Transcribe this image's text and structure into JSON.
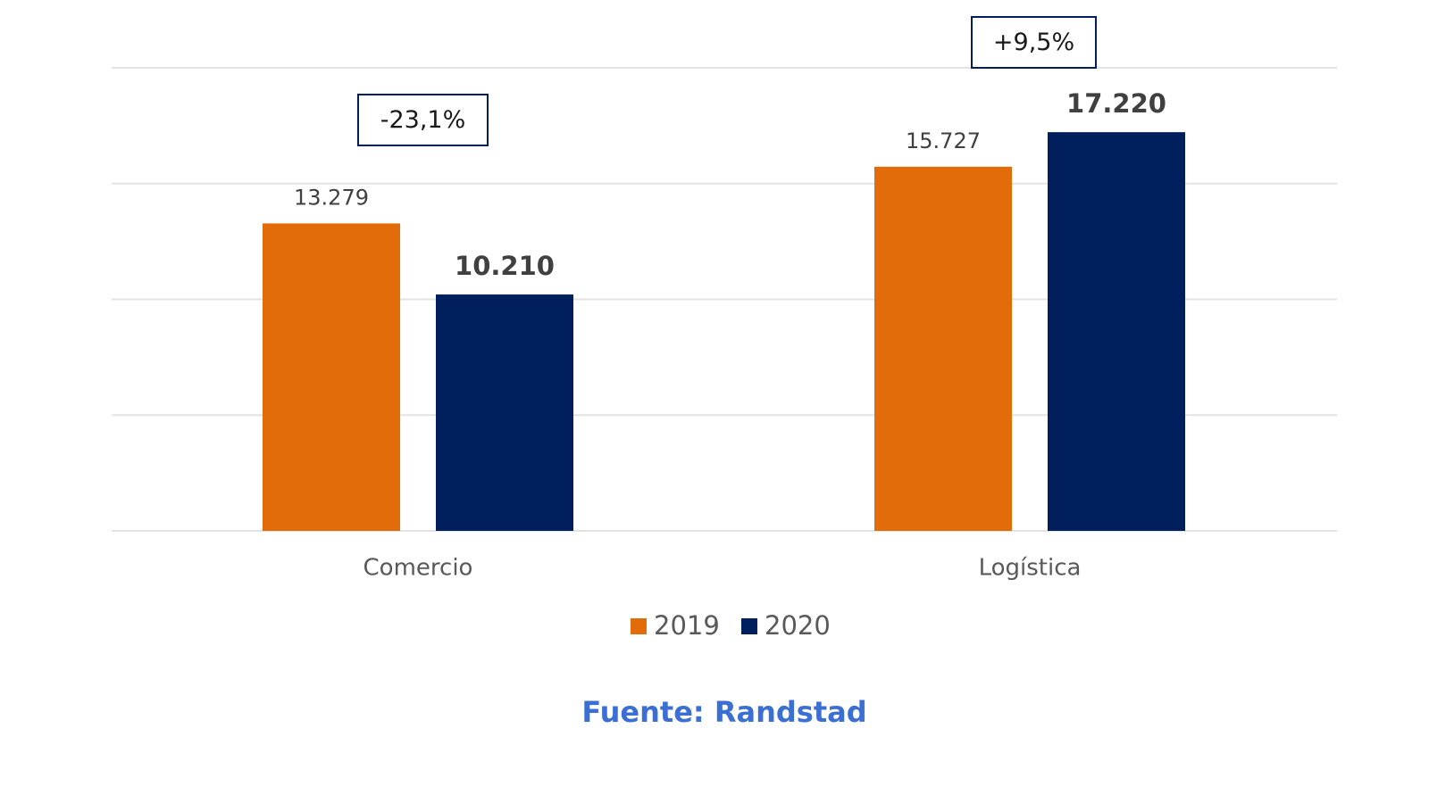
{
  "chart_data": {
    "type": "bar",
    "categories": [
      "Comercio",
      "Logística"
    ],
    "series": [
      {
        "name": "2019",
        "color": "#e36c0a",
        "values": [
          13279,
          15727
        ],
        "value_labels": [
          "13.279",
          "15.727"
        ]
      },
      {
        "name": "2020",
        "color": "#001f5c",
        "values": [
          10210,
          17220
        ],
        "value_labels": [
          "10.210",
          "17.220"
        ]
      }
    ],
    "ylim": [
      0,
      20000
    ],
    "yticks": [
      0,
      5000,
      10000,
      15000,
      20000
    ],
    "grid": true,
    "legend": "bottom",
    "annotations": [
      "-23,1%",
      "+9,5%"
    ],
    "source": "Fuente: Randstad"
  }
}
